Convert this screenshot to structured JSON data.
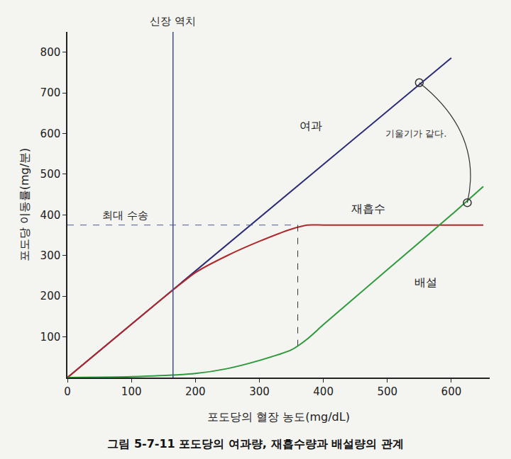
{
  "chart_data": {
    "type": "line",
    "title": "그림 5-7-11 포도당의 여과량, 재흡수량과 배설량의 관계",
    "x_label": "포도당의 혈장 농도(mg/dL)",
    "y_label": "포도당 이동률(mg/분)",
    "xlim": [
      0,
      660
    ],
    "ylim": [
      0,
      850
    ],
    "xticks": [
      0,
      100,
      200,
      300,
      400,
      500,
      600
    ],
    "yticks": [
      100,
      200,
      300,
      400,
      500,
      600,
      700,
      800
    ],
    "grid": false,
    "series": [
      {
        "name": "여과",
        "color": "#2b2a78",
        "line_style": "solid",
        "x": [
          0,
          100,
          200,
          300,
          400,
          500,
          600
        ],
        "values": [
          0,
          131,
          262,
          393,
          524,
          655,
          786
        ]
      },
      {
        "name": "재흡수",
        "color": "#b0282a",
        "line_style": "solid",
        "x": [
          0,
          100,
          200,
          250,
          300,
          350,
          375,
          400,
          500,
          650
        ],
        "values": [
          0,
          131,
          258,
          300,
          335,
          365,
          375,
          375,
          375,
          375
        ]
      },
      {
        "name": "배설",
        "color": "#2f9a3c",
        "line_style": "solid",
        "x": [
          0,
          100,
          200,
          250,
          300,
          350,
          375,
          400,
          500,
          600,
          650
        ],
        "values": [
          0,
          2,
          10,
          22,
          42,
          68,
          95,
          130,
          265,
          400,
          470
        ]
      }
    ],
    "renal_threshold": {
      "label": "신장 역치",
      "x": 165,
      "color": "#3a4fa0"
    },
    "max_transport": {
      "label": "최대 수송",
      "y": 375,
      "at_x": 360
    },
    "note": {
      "text": "기울기가 같다.",
      "points": [
        [
          550,
          725
        ],
        [
          625,
          430
        ]
      ]
    }
  }
}
